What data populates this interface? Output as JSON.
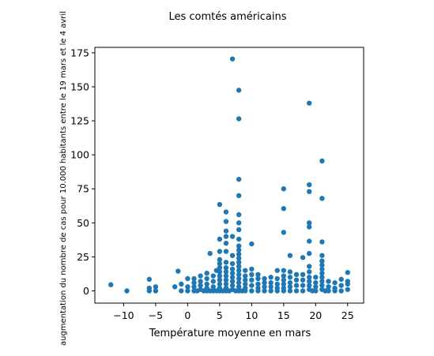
{
  "chart_data": {
    "type": "scatter",
    "title": "Les comtés américains",
    "xlabel": "Température moyenne en mars",
    "ylabel": "augmentation du nombre de cas pour 10.000 habitants entre le 19 mars et le 4 avril",
    "xlim": [
      -14.5,
      27.5
    ],
    "ylim": [
      -9,
      179
    ],
    "xticks": [
      -10,
      -5,
      0,
      5,
      10,
      15,
      20,
      25
    ],
    "yticks": [
      0,
      25,
      50,
      75,
      100,
      125,
      150,
      175
    ],
    "grid": false,
    "marker_color": "#1f77b4",
    "points": [
      [
        -12,
        4.5
      ],
      [
        -9.5,
        0
      ],
      [
        -6,
        8.5
      ],
      [
        -6,
        2
      ],
      [
        -6,
        0
      ],
      [
        -5,
        3
      ],
      [
        -5,
        0
      ],
      [
        -2,
        3
      ],
      [
        -1.5,
        14.5
      ],
      [
        -1,
        5
      ],
      [
        -1,
        0
      ],
      [
        0,
        9
      ],
      [
        0,
        3
      ],
      [
        0,
        0
      ],
      [
        1,
        9
      ],
      [
        1,
        6
      ],
      [
        1,
        3
      ],
      [
        1,
        0
      ],
      [
        1.5,
        0
      ],
      [
        2,
        11
      ],
      [
        2,
        7
      ],
      [
        2,
        4
      ],
      [
        2,
        1
      ],
      [
        2.5,
        0
      ],
      [
        3,
        13
      ],
      [
        3,
        9
      ],
      [
        3,
        5
      ],
      [
        3,
        2
      ],
      [
        3,
        0
      ],
      [
        3.5,
        27.5
      ],
      [
        3.5,
        0
      ],
      [
        4,
        11
      ],
      [
        4,
        7
      ],
      [
        4,
        3
      ],
      [
        4,
        0
      ],
      [
        4.5,
        15
      ],
      [
        4.5,
        0
      ],
      [
        5,
        63.5
      ],
      [
        5,
        38
      ],
      [
        5,
        29
      ],
      [
        5,
        23
      ],
      [
        5,
        20
      ],
      [
        5,
        17
      ],
      [
        5,
        14
      ],
      [
        5,
        11
      ],
      [
        5,
        8
      ],
      [
        5,
        5
      ],
      [
        5,
        2
      ],
      [
        5,
        0
      ],
      [
        5.5,
        0
      ],
      [
        6,
        58
      ],
      [
        6,
        51
      ],
      [
        6,
        44
      ],
      [
        6,
        40
      ],
      [
        6,
        35
      ],
      [
        6,
        29
      ],
      [
        6,
        21
      ],
      [
        6,
        17
      ],
      [
        6,
        14
      ],
      [
        6,
        11
      ],
      [
        6,
        8
      ],
      [
        6,
        5
      ],
      [
        6,
        2
      ],
      [
        6,
        0
      ],
      [
        6.5,
        0
      ],
      [
        7,
        170.5
      ],
      [
        7,
        40
      ],
      [
        7,
        26
      ],
      [
        7,
        20
      ],
      [
        7,
        16
      ],
      [
        7,
        13
      ],
      [
        7,
        10
      ],
      [
        7,
        7
      ],
      [
        7,
        4
      ],
      [
        7,
        1
      ],
      [
        7.5,
        0
      ],
      [
        8,
        147.5
      ],
      [
        8,
        126.5
      ],
      [
        8,
        82
      ],
      [
        8,
        70
      ],
      [
        8,
        56
      ],
      [
        8,
        50
      ],
      [
        8,
        45
      ],
      [
        8,
        38
      ],
      [
        8,
        33
      ],
      [
        8,
        30
      ],
      [
        8,
        27
      ],
      [
        8,
        24
      ],
      [
        8,
        21
      ],
      [
        8,
        18
      ],
      [
        8,
        15
      ],
      [
        8,
        12
      ],
      [
        8,
        9
      ],
      [
        8,
        6
      ],
      [
        8,
        3
      ],
      [
        8,
        0
      ],
      [
        8.5,
        0
      ],
      [
        9,
        15
      ],
      [
        9,
        11
      ],
      [
        9,
        8
      ],
      [
        9,
        5
      ],
      [
        9,
        2
      ],
      [
        9,
        0
      ],
      [
        10,
        34.5
      ],
      [
        10,
        16
      ],
      [
        10,
        12
      ],
      [
        10,
        8
      ],
      [
        10,
        4
      ],
      [
        10,
        0
      ],
      [
        11,
        12
      ],
      [
        11,
        9
      ],
      [
        11,
        5
      ],
      [
        11,
        2
      ],
      [
        11,
        0
      ],
      [
        12,
        9
      ],
      [
        12,
        6
      ],
      [
        12,
        3
      ],
      [
        12,
        0
      ],
      [
        13,
        10
      ],
      [
        13,
        6
      ],
      [
        13,
        3
      ],
      [
        13,
        0
      ],
      [
        14,
        15
      ],
      [
        14,
        9
      ],
      [
        14,
        5
      ],
      [
        14,
        2
      ],
      [
        14,
        0
      ],
      [
        15,
        75
      ],
      [
        15,
        60.5
      ],
      [
        15,
        43
      ],
      [
        15,
        15
      ],
      [
        15,
        11
      ],
      [
        15,
        8
      ],
      [
        15,
        5
      ],
      [
        15,
        2
      ],
      [
        15,
        0
      ],
      [
        16,
        26
      ],
      [
        16,
        14
      ],
      [
        16,
        10
      ],
      [
        16,
        6
      ],
      [
        16,
        3
      ],
      [
        16,
        0
      ],
      [
        17,
        12
      ],
      [
        17,
        8
      ],
      [
        17,
        4
      ],
      [
        17,
        0
      ],
      [
        18,
        24.5
      ],
      [
        18,
        12
      ],
      [
        18,
        8
      ],
      [
        18,
        4
      ],
      [
        18,
        0
      ],
      [
        19,
        138
      ],
      [
        19,
        78
      ],
      [
        19,
        73
      ],
      [
        19,
        50
      ],
      [
        19,
        47
      ],
      [
        19,
        36.5
      ],
      [
        19,
        27.5
      ],
      [
        19,
        18
      ],
      [
        19,
        14
      ],
      [
        19,
        10
      ],
      [
        19,
        7
      ],
      [
        19,
        4
      ],
      [
        19,
        1
      ],
      [
        19.5,
        0
      ],
      [
        20,
        10
      ],
      [
        20,
        6
      ],
      [
        20,
        3
      ],
      [
        20,
        0
      ],
      [
        21,
        95.5
      ],
      [
        21,
        68
      ],
      [
        21,
        36
      ],
      [
        21,
        26
      ],
      [
        21,
        22
      ],
      [
        21,
        19
      ],
      [
        21,
        16
      ],
      [
        21,
        13
      ],
      [
        21,
        10
      ],
      [
        21,
        7
      ],
      [
        21,
        4
      ],
      [
        21,
        1
      ],
      [
        21.5,
        0
      ],
      [
        22,
        7
      ],
      [
        22,
        3
      ],
      [
        22,
        0
      ],
      [
        23,
        6
      ],
      [
        23,
        2
      ],
      [
        23,
        0
      ],
      [
        24,
        8.5
      ],
      [
        24,
        4
      ],
      [
        24,
        0
      ],
      [
        25,
        13.5
      ],
      [
        25,
        7
      ],
      [
        25,
        5
      ],
      [
        25,
        1
      ]
    ]
  }
}
